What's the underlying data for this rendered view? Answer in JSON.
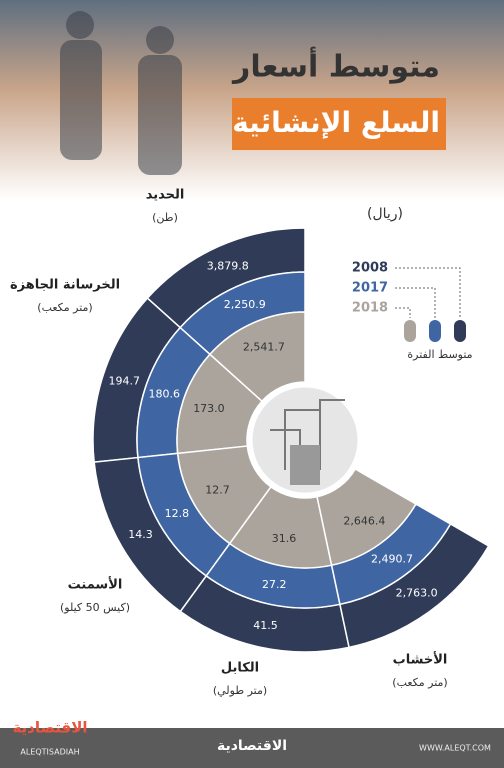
{
  "chart_data": {
    "type": "radial-rings",
    "title": "متوسط أسعار",
    "subtitle": "السلع الإنشائية",
    "unit_label": "(ريال)",
    "legend_caption": "متوسط الفترة",
    "categories": [
      "الحديد",
      "الخرسانة الجاهزة",
      "الأسمنت",
      "الكابل",
      "الأخشاب"
    ],
    "category_units": [
      "(طن)",
      "(متر مكعب)",
      "(كيس 50 كيلو)",
      "(متر طولي)",
      "(متر مكعب)"
    ],
    "series": [
      {
        "name": "2008",
        "color": "#2f3b57",
        "values": [
          3879.8,
          194.7,
          14.3,
          41.5,
          2763.0
        ],
        "value_labels": [
          "3,879.8",
          "194.7",
          "14.3",
          "41.5",
          "2,763.0"
        ]
      },
      {
        "name": "2017",
        "color": "#3f66a3",
        "values": [
          2250.9,
          180.6,
          12.8,
          27.2,
          2490.7
        ],
        "value_labels": [
          "2,250.9",
          "180.6",
          "12.8",
          "27.2",
          "2,490.7"
        ]
      },
      {
        "name": "2018",
        "color": "#aaa49d",
        "values": [
          2541.7,
          173.0,
          12.7,
          31.6,
          2646.4
        ],
        "value_labels": [
          "2,541.7",
          "173.0",
          "12.7",
          "31.6",
          "2,646.4"
        ]
      }
    ]
  },
  "footer": {
    "logo": "الاقتصادية",
    "handle": "ALEQTISADIAH",
    "brand": "الاقتصادية",
    "website": "WWW.ALEQT.COM"
  }
}
